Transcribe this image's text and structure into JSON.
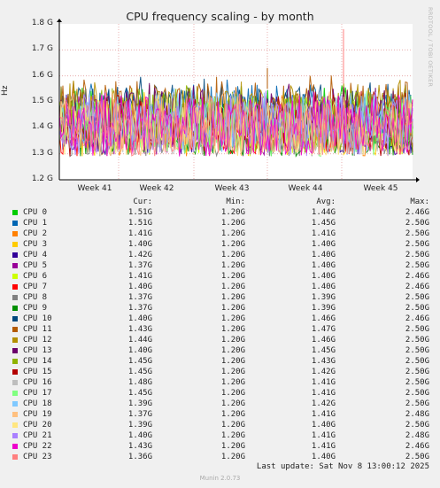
{
  "chart_data": {
    "type": "line",
    "title": "CPU frequency scaling - by month",
    "ylabel": "Hz",
    "ylim": [
      1.2,
      1.8
    ],
    "y_ticks": [
      "1.8 G",
      "1.7 G",
      "1.6 G",
      "1.5 G",
      "1.4 G",
      "1.3 G",
      "1.2 G"
    ],
    "y_tick_values": [
      1.8,
      1.7,
      1.6,
      1.5,
      1.4,
      1.3,
      1.2
    ],
    "x_ticks": [
      "Week 41",
      "Week 42",
      "Week 43",
      "Week 44",
      "Week 45"
    ],
    "grid": true,
    "series": [
      {
        "name": "CPU 0",
        "color": "#00cc00",
        "cur": "1.51G",
        "min": "1.20G",
        "avg": "1.44G",
        "max": "2.46G"
      },
      {
        "name": "CPU 1",
        "color": "#0066b3",
        "cur": "1.51G",
        "min": "1.20G",
        "avg": "1.45G",
        "max": "2.50G"
      },
      {
        "name": "CPU 2",
        "color": "#ff8000",
        "cur": "1.41G",
        "min": "1.20G",
        "avg": "1.41G",
        "max": "2.50G"
      },
      {
        "name": "CPU 3",
        "color": "#ffcc00",
        "cur": "1.40G",
        "min": "1.20G",
        "avg": "1.40G",
        "max": "2.50G"
      },
      {
        "name": "CPU 4",
        "color": "#330099",
        "cur": "1.42G",
        "min": "1.20G",
        "avg": "1.40G",
        "max": "2.50G"
      },
      {
        "name": "CPU 5",
        "color": "#990099",
        "cur": "1.37G",
        "min": "1.20G",
        "avg": "1.40G",
        "max": "2.50G"
      },
      {
        "name": "CPU 6",
        "color": "#ccff00",
        "cur": "1.41G",
        "min": "1.20G",
        "avg": "1.40G",
        "max": "2.46G"
      },
      {
        "name": "CPU 7",
        "color": "#ff0000",
        "cur": "1.40G",
        "min": "1.20G",
        "avg": "1.40G",
        "max": "2.46G"
      },
      {
        "name": "CPU 8",
        "color": "#808080",
        "cur": "1.37G",
        "min": "1.20G",
        "avg": "1.39G",
        "max": "2.50G"
      },
      {
        "name": "CPU 9",
        "color": "#008f00",
        "cur": "1.37G",
        "min": "1.20G",
        "avg": "1.39G",
        "max": "2.50G"
      },
      {
        "name": "CPU 10",
        "color": "#00487d",
        "cur": "1.40G",
        "min": "1.20G",
        "avg": "1.46G",
        "max": "2.46G"
      },
      {
        "name": "CPU 11",
        "color": "#b35a00",
        "cur": "1.43G",
        "min": "1.20G",
        "avg": "1.47G",
        "max": "2.50G"
      },
      {
        "name": "CPU 12",
        "color": "#b38f00",
        "cur": "1.44G",
        "min": "1.20G",
        "avg": "1.46G",
        "max": "2.50G"
      },
      {
        "name": "CPU 13",
        "color": "#6b006b",
        "cur": "1.40G",
        "min": "1.20G",
        "avg": "1.45G",
        "max": "2.50G"
      },
      {
        "name": "CPU 14",
        "color": "#8fb300",
        "cur": "1.45G",
        "min": "1.20G",
        "avg": "1.43G",
        "max": "2.50G"
      },
      {
        "name": "CPU 15",
        "color": "#b30000",
        "cur": "1.45G",
        "min": "1.20G",
        "avg": "1.42G",
        "max": "2.50G"
      },
      {
        "name": "CPU 16",
        "color": "#bebebe",
        "cur": "1.48G",
        "min": "1.20G",
        "avg": "1.41G",
        "max": "2.50G"
      },
      {
        "name": "CPU 17",
        "color": "#80ff80",
        "cur": "1.45G",
        "min": "1.20G",
        "avg": "1.41G",
        "max": "2.50G"
      },
      {
        "name": "CPU 18",
        "color": "#80c9ff",
        "cur": "1.39G",
        "min": "1.20G",
        "avg": "1.42G",
        "max": "2.50G"
      },
      {
        "name": "CPU 19",
        "color": "#ffc080",
        "cur": "1.37G",
        "min": "1.20G",
        "avg": "1.41G",
        "max": "2.48G"
      },
      {
        "name": "CPU 20",
        "color": "#ffe680",
        "cur": "1.39G",
        "min": "1.20G",
        "avg": "1.40G",
        "max": "2.50G"
      },
      {
        "name": "CPU 21",
        "color": "#aa80ff",
        "cur": "1.40G",
        "min": "1.20G",
        "avg": "1.41G",
        "max": "2.48G"
      },
      {
        "name": "CPU 22",
        "color": "#ee00cc",
        "cur": "1.43G",
        "min": "1.20G",
        "avg": "1.41G",
        "max": "2.46G"
      },
      {
        "name": "CPU 23",
        "color": "#ff8080",
        "cur": "1.36G",
        "min": "1.20G",
        "avg": "1.40G",
        "max": "2.50G"
      }
    ]
  },
  "legend_headers": {
    "cur": "Cur:",
    "min": "Min:",
    "avg": "Avg:",
    "max": "Max:"
  },
  "last_update": "Last update: Sat Nov  8 13:00:12 2025",
  "watermark": "RRDTOOL / TOBI OETIKER",
  "footer": "Munin 2.0.73"
}
